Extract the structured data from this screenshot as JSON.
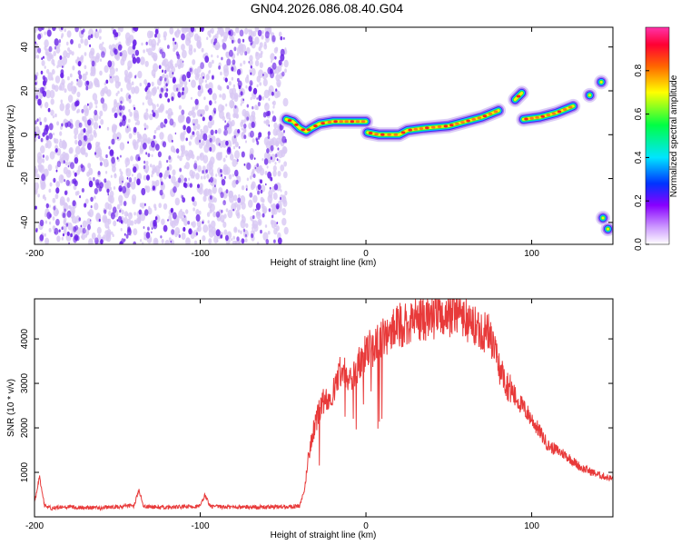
{
  "title": "GN04.2026.086.08.40.G04",
  "colors": {
    "axis": "#000000",
    "snr_line": "#e83a3a",
    "spectrogram_noise_dark": "#6a22e8",
    "spectrogram_noise_light": "#d8c8f4",
    "colormap": [
      "#ffffff",
      "#cc99ff",
      "#8800ff",
      "#0033ff",
      "#00e5ff",
      "#00ff44",
      "#ffff00",
      "#ff6600",
      "#ff0033",
      "#ff33aa"
    ]
  },
  "chart_data": [
    {
      "type": "heatmap",
      "xlabel": "Height of straight line (km)",
      "ylabel": "Frequency (Hz)",
      "xlim": [
        -200,
        149
      ],
      "ylim": [
        -50,
        49
      ],
      "xticks": [
        -200,
        -100,
        0,
        100
      ],
      "yticks": [
        -40,
        -20,
        0,
        20,
        40
      ],
      "noise_region_x": [
        -200,
        -48
      ],
      "ridge": [
        {
          "x": -48,
          "y": 7
        },
        {
          "x": -44,
          "y": 6
        },
        {
          "x": -40,
          "y": 3
        },
        {
          "x": -36,
          "y": 1.5
        },
        {
          "x": -33,
          "y": 3
        },
        {
          "x": -28,
          "y": 5
        },
        {
          "x": -20,
          "y": 6
        },
        {
          "x": -10,
          "y": 6
        },
        {
          "x": 0,
          "y": 6
        },
        {
          "x": 1,
          "y": 1
        },
        {
          "x": 8,
          "y": 0
        },
        {
          "x": 20,
          "y": 0
        },
        {
          "x": 25,
          "y": 2
        },
        {
          "x": 35,
          "y": 3
        },
        {
          "x": 50,
          "y": 4
        },
        {
          "x": 60,
          "y": 6
        },
        {
          "x": 70,
          "y": 8
        },
        {
          "x": 80,
          "y": 11
        },
        {
          "x": 90,
          "y": 16
        },
        {
          "x": 94,
          "y": 19
        },
        {
          "x": 95,
          "y": 7
        },
        {
          "x": 105,
          "y": 8
        },
        {
          "x": 115,
          "y": 10
        },
        {
          "x": 125,
          "y": 13
        },
        {
          "x": 135,
          "y": 18
        },
        {
          "x": 142,
          "y": 24
        },
        {
          "x": 143,
          "y": -38
        },
        {
          "x": 146,
          "y": -43
        }
      ],
      "colorbar": {
        "label": "Normalized spectral amplitude",
        "range": [
          0,
          1
        ],
        "ticks": [
          "0.0",
          "0.2",
          "0.4",
          "0.6",
          "0.8"
        ]
      }
    },
    {
      "type": "line",
      "xlabel": "Height of straight line (km)",
      "ylabel": "SNR (10 * v/v)",
      "xlim": [
        -200,
        149
      ],
      "ylim": [
        0,
        4900
      ],
      "xticks": [
        -200,
        -100,
        0,
        100
      ],
      "yticks": [
        1000,
        2000,
        3000,
        4000
      ],
      "series": [
        {
          "x": [
            -200,
            -197,
            -194,
            -190,
            -180,
            -160,
            -140,
            -137,
            -134,
            -120,
            -100,
            -97,
            -94,
            -80,
            -60,
            -40,
            -37,
            -35,
            -32,
            -28,
            -24,
            -20,
            -18,
            -15,
            -10,
            -5,
            0,
            10,
            20,
            30,
            40,
            50,
            55,
            60,
            65,
            70,
            75,
            80,
            85,
            90,
            100,
            110,
            120,
            130,
            140,
            149
          ],
          "y": [
            300,
            900,
            250,
            200,
            220,
            200,
            250,
            600,
            230,
            210,
            240,
            500,
            230,
            220,
            220,
            240,
            600,
            1300,
            1900,
            2400,
            2700,
            2800,
            3000,
            3300,
            3100,
            3400,
            3700,
            4000,
            4300,
            4450,
            4500,
            4550,
            4700,
            4400,
            4300,
            4200,
            4100,
            3400,
            3000,
            2700,
            2200,
            1600,
            1400,
            1100,
            950,
            850
          ]
        }
      ]
    }
  ]
}
